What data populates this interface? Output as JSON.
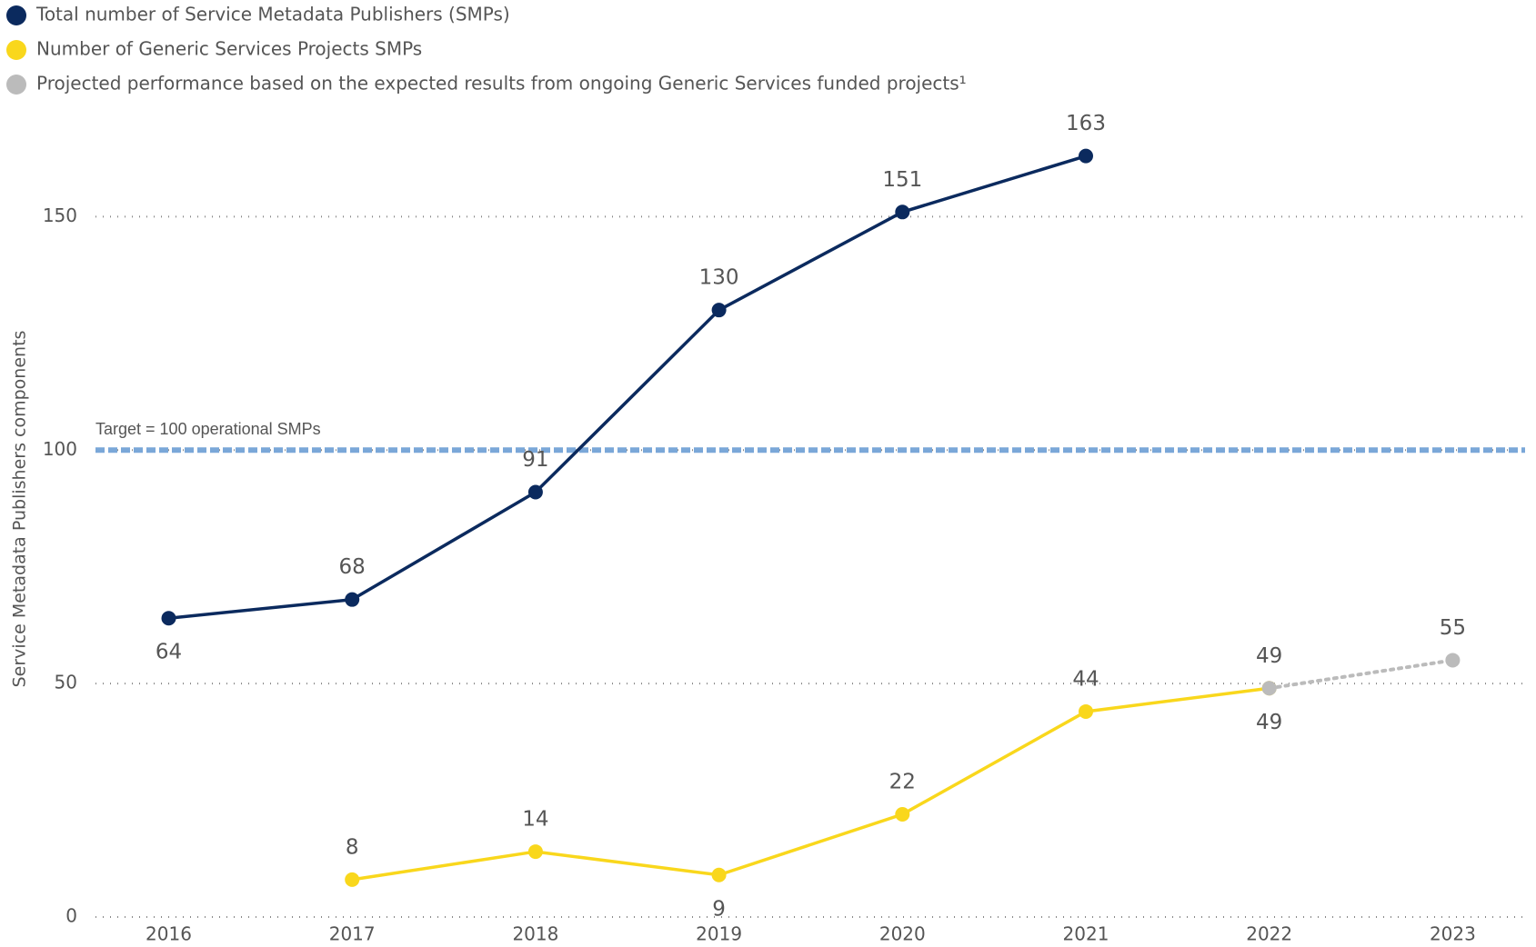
{
  "chart_data": {
    "type": "line",
    "y_axis_label": "Service Metadata Publishers components",
    "categories": [
      "2016",
      "2017",
      "2018",
      "2019",
      "2020",
      "2021",
      "2022",
      "2023"
    ],
    "series": [
      {
        "name": "Total number of Service Metadata Publishers (SMPs)",
        "color": "#0b2a5e",
        "values": [
          64,
          68,
          91,
          130,
          151,
          163,
          null,
          null
        ]
      },
      {
        "name": "Number of Generic Services Projects SMPs",
        "color": "#f9d71c",
        "values": [
          null,
          8,
          14,
          9,
          22,
          44,
          49,
          null
        ]
      },
      {
        "name": "Projected performance based on the expected results from ongoing Generic Services funded projects¹",
        "color": "#bbbbbb",
        "values": [
          null,
          null,
          null,
          null,
          null,
          null,
          49,
          55
        ],
        "dashed": true
      }
    ],
    "annotations": [
      {
        "text": "Target = 100 operational SMPs",
        "value": 100,
        "color": "#2f6fbf"
      }
    ],
    "ylim": [
      0,
      175
    ],
    "yticks": [
      0,
      50,
      100,
      150
    ],
    "grid": true
  }
}
